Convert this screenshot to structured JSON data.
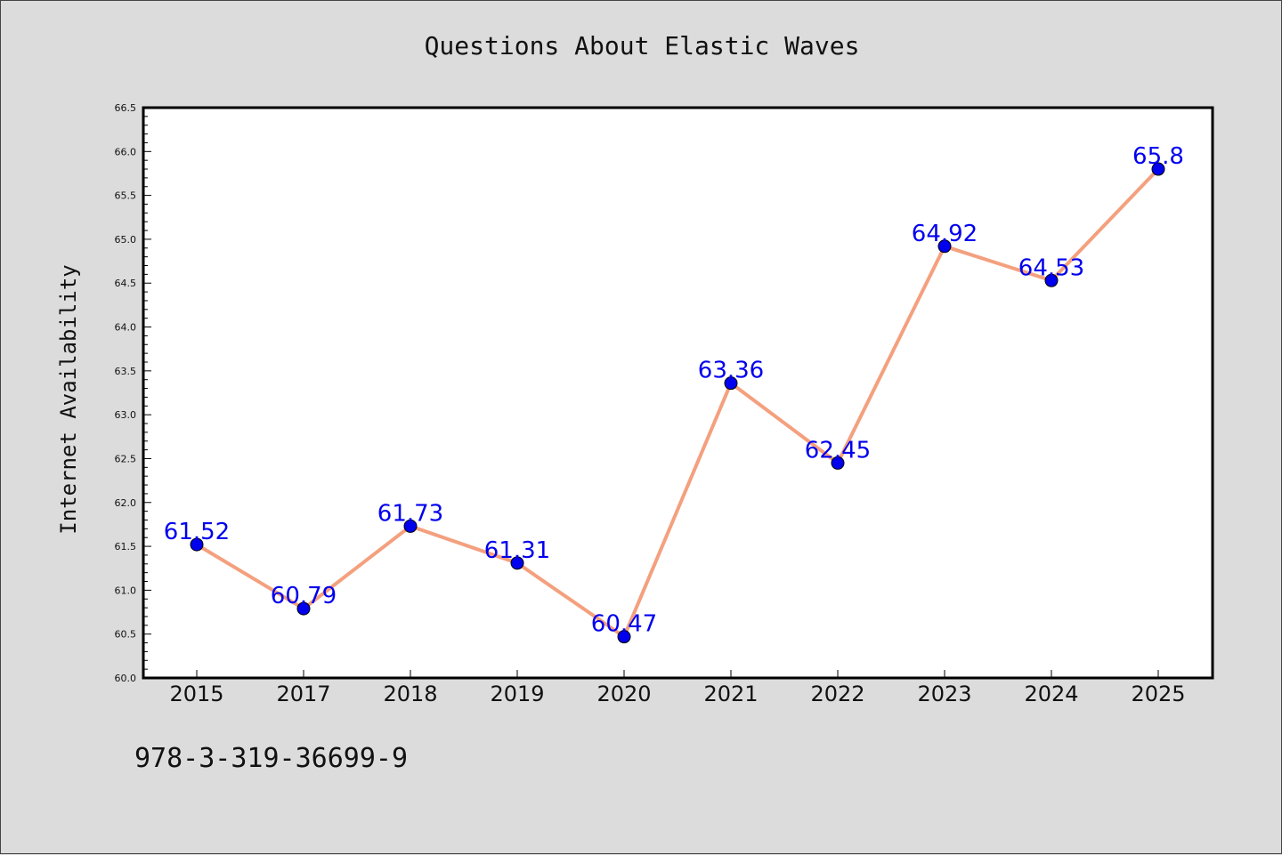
{
  "chart_data": {
    "type": "line",
    "title": "Questions About Elastic Waves",
    "xlabel": "",
    "ylabel": "Internet Availability",
    "categories": [
      "2015",
      "2017",
      "2018",
      "2019",
      "2020",
      "2021",
      "2022",
      "2023",
      "2024",
      "2025"
    ],
    "series": [
      {
        "values": [
          61.52,
          60.79,
          61.73,
          61.31,
          60.47,
          63.36,
          62.45,
          64.92,
          64.53,
          65.8
        ],
        "data_labels": [
          "61.52",
          "60.79",
          "61.73",
          "61.31",
          "60.47",
          "63.36",
          "62.45",
          "64.92",
          "64.53",
          "65.8"
        ],
        "line_color": "#f4a07e",
        "marker_color": "#0000ee",
        "label_color": "#0000ee"
      }
    ],
    "ylim": [
      60.0,
      66.5
    ],
    "yticks": [
      "60.0",
      "60.5",
      "61.0",
      "61.5",
      "62.0",
      "62.5",
      "63.0",
      "63.5",
      "64.0",
      "64.5",
      "65.0",
      "65.5",
      "66.0",
      "66.5"
    ],
    "grid": false,
    "legend": "none"
  },
  "footer": {
    "note": "978-3-319-36699-9"
  },
  "colors": {
    "background": "#dcdcdc",
    "plot_background": "#ffffff",
    "axes": "#000000"
  }
}
